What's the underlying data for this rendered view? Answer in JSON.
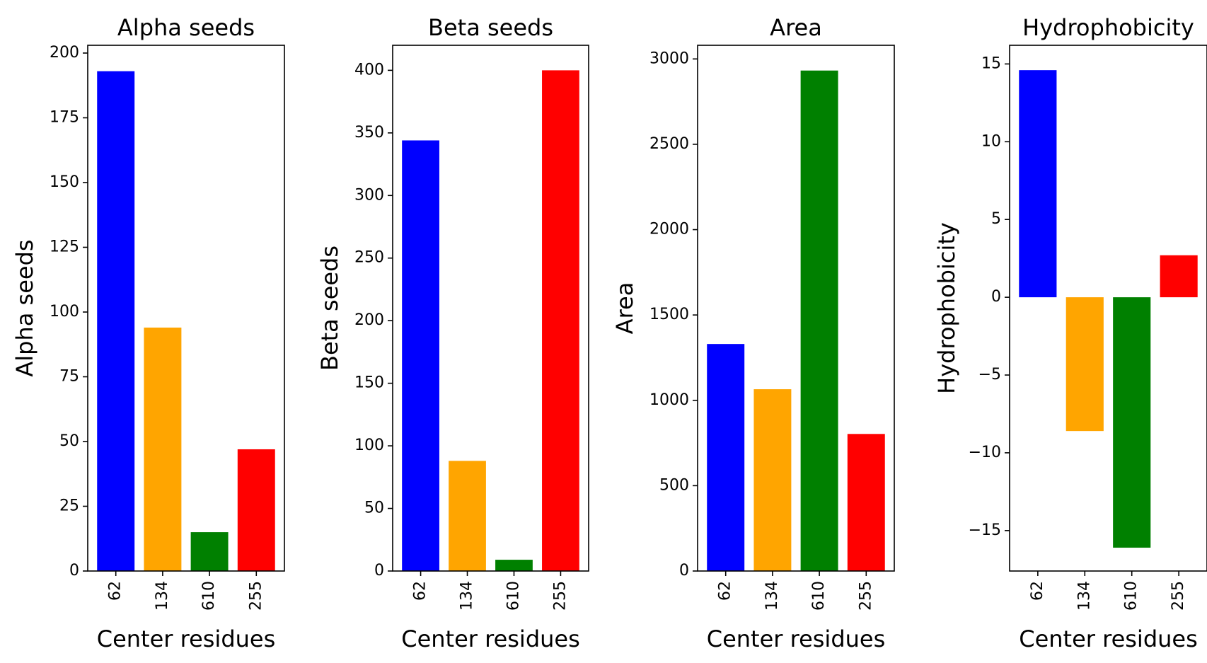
{
  "chart_data": [
    {
      "type": "bar",
      "title": "Alpha seeds",
      "xlabel": "Center residues",
      "ylabel": "Alpha seeds",
      "categories": [
        "62",
        "134",
        "610",
        "255"
      ],
      "values": [
        193,
        94,
        15,
        47
      ],
      "colors": [
        "#0000ff",
        "#ffa500",
        "#008000",
        "#ff0000"
      ],
      "ylim": [
        0,
        203
      ],
      "yticks": [
        0,
        25,
        50,
        75,
        100,
        125,
        150,
        175,
        200
      ],
      "ytick_labels": [
        "0",
        "25",
        "50",
        "75",
        "100",
        "125",
        "150",
        "175",
        "200"
      ],
      "xtick_rotation": 90,
      "grid": false,
      "legend": "none"
    },
    {
      "type": "bar",
      "title": "Beta seeds",
      "xlabel": "Center residues",
      "ylabel": "Beta seeds",
      "categories": [
        "62",
        "134",
        "610",
        "255"
      ],
      "values": [
        344,
        88,
        9,
        400
      ],
      "colors": [
        "#0000ff",
        "#ffa500",
        "#008000",
        "#ff0000"
      ],
      "ylim": [
        0,
        420
      ],
      "yticks": [
        0,
        50,
        100,
        150,
        200,
        250,
        300,
        350,
        400
      ],
      "ytick_labels": [
        "0",
        "50",
        "100",
        "150",
        "200",
        "250",
        "300",
        "350",
        "400"
      ],
      "xtick_rotation": 90,
      "grid": false,
      "legend": "none"
    },
    {
      "type": "bar",
      "title": "Area",
      "xlabel": "Center residues",
      "ylabel": "Area",
      "categories": [
        "62",
        "134",
        "610",
        "255"
      ],
      "values": [
        1330,
        1065,
        2932,
        803
      ],
      "colors": [
        "#0000ff",
        "#ffa500",
        "#008000",
        "#ff0000"
      ],
      "ylim": [
        0,
        3080
      ],
      "yticks": [
        0,
        500,
        1000,
        1500,
        2000,
        2500,
        3000
      ],
      "ytick_labels": [
        "0",
        "500",
        "1000",
        "1500",
        "2000",
        "2500",
        "3000"
      ],
      "xtick_rotation": 90,
      "grid": false,
      "legend": "none"
    },
    {
      "type": "bar",
      "title": "Hydrophobicity",
      "xlabel": "Center residues",
      "ylabel": "Hydrophobicity",
      "categories": [
        "62",
        "134",
        "610",
        "255"
      ],
      "values": [
        14.6,
        -8.6,
        -16.1,
        2.7
      ],
      "colors": [
        "#0000ff",
        "#ffa500",
        "#008000",
        "#ff0000"
      ],
      "ylim": [
        -17.6,
        16.2
      ],
      "yticks": [
        -15,
        -10,
        -5,
        0,
        5,
        10,
        15
      ],
      "ytick_labels": [
        "−15",
        "−10",
        "−5",
        "0",
        "5",
        "10",
        "15"
      ],
      "xtick_rotation": 90,
      "grid": false,
      "legend": "none"
    }
  ]
}
